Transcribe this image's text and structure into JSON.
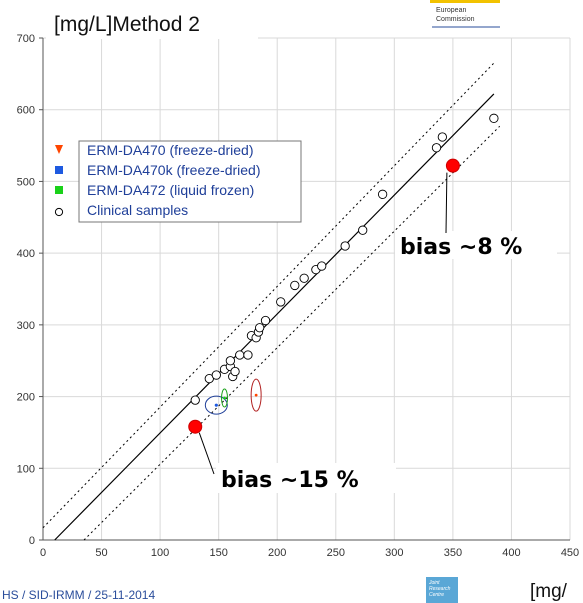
{
  "header": {
    "ylabel": "[mg/L]Method 2",
    "ec_line1": "European",
    "ec_line2": "Commission"
  },
  "footer": {
    "text": "HS / SID-IRMM / 25-11-2014",
    "jrc_line1": "Joint",
    "jrc_line2": "Research",
    "jrc_line3": "Centre",
    "xunit_partial": "[mg/"
  },
  "chart_data": {
    "type": "scatter",
    "title": "",
    "xlabel": "",
    "ylabel": "[mg/L]Method 2",
    "xlim": [
      0,
      450
    ],
    "ylim": [
      0,
      700
    ],
    "x_ticks": [
      0,
      50,
      100,
      150,
      200,
      250,
      300,
      350,
      400,
      450
    ],
    "y_ticks": [
      0,
      100,
      200,
      300,
      400,
      500,
      600,
      700
    ],
    "grid": true,
    "legend_position": "upper-left",
    "series": [
      {
        "name": "Clinical samples",
        "marker": "open-circle",
        "color": "#000000",
        "points": [
          [
            130,
            195
          ],
          [
            142,
            225
          ],
          [
            148,
            230
          ],
          [
            155,
            238
          ],
          [
            160,
            242
          ],
          [
            160,
            250
          ],
          [
            162,
            228
          ],
          [
            164,
            235
          ],
          [
            168,
            258
          ],
          [
            175,
            258
          ],
          [
            178,
            285
          ],
          [
            182,
            282
          ],
          [
            184,
            290
          ],
          [
            185,
            296
          ],
          [
            190,
            306
          ],
          [
            203,
            332
          ],
          [
            215,
            355
          ],
          [
            223,
            365
          ],
          [
            233,
            377
          ],
          [
            238,
            382
          ],
          [
            258,
            410
          ],
          [
            273,
            432
          ],
          [
            290,
            482
          ],
          [
            336,
            547
          ],
          [
            341,
            562
          ],
          [
            385,
            588
          ]
        ]
      },
      {
        "name": "ERM-DA470 (freeze-dried)",
        "marker": "triangle-down",
        "color": "#ff4500",
        "points": [
          [
            182,
            202
          ]
        ]
      },
      {
        "name": "ERM-DA470k (freeze-dried)",
        "marker": "square",
        "color": "#1e5ae0",
        "points": [
          [
            148,
            188
          ]
        ]
      },
      {
        "name": "ERM-DA472 (liquid frozen)",
        "marker": "square",
        "color": "#19d119",
        "points": [
          [
            155,
            198
          ]
        ]
      }
    ],
    "highlight_points": [
      {
        "x": 130,
        "y": 158,
        "color": "#ff0000"
      },
      {
        "x": 350,
        "y": 522,
        "color": "#ff0000"
      }
    ],
    "regression_line": {
      "points": [
        [
          10,
          0
        ],
        [
          385,
          622
        ]
      ]
    },
    "confidence_band_upper": {
      "points": [
        [
          0,
          17
        ],
        [
          385,
          665
        ]
      ]
    },
    "confidence_band_lower": {
      "points": [
        [
          35,
          0
        ],
        [
          390,
          577
        ]
      ]
    },
    "annotations": [
      {
        "text": "bias ~8 %"
      },
      {
        "text": "bias ~15 %"
      }
    ]
  }
}
